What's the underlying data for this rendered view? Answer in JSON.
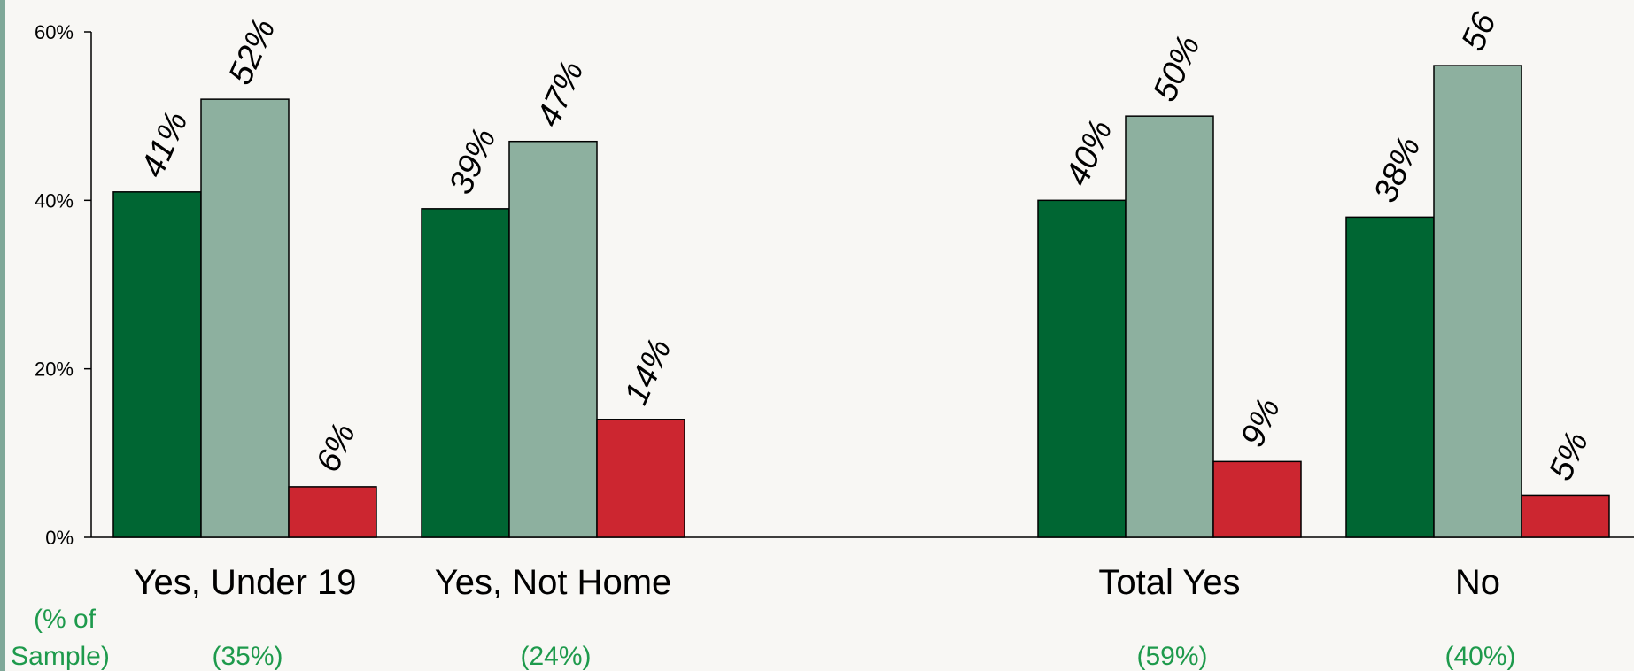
{
  "chart_data": {
    "type": "bar",
    "categories": [
      "Yes, Under 19",
      "Yes, Not Home",
      "Total Yes",
      "No"
    ],
    "series": [
      {
        "values": [
          41,
          39,
          40,
          38
        ],
        "color": "#006633"
      },
      {
        "values": [
          52,
          47,
          50,
          56
        ],
        "color": "#8db09f"
      },
      {
        "values": [
          6,
          14,
          9,
          5
        ],
        "color": "#cc2630"
      }
    ],
    "data_labels": [
      [
        "41%",
        "39%",
        "40%",
        "38%"
      ],
      [
        "52%",
        "47%",
        "50%",
        "56"
      ],
      [
        "6%",
        "14%",
        "9%",
        "5%"
      ]
    ],
    "sample_heading": [
      "(% of",
      "Sample)"
    ],
    "sample_shares": [
      "(35%)",
      "(24%)",
      "(59%)",
      "(40%)"
    ],
    "y_ticks": [
      0,
      20,
      40,
      60
    ],
    "y_tick_labels": [
      "0%",
      "20%",
      "40%",
      "60%"
    ],
    "ylim": [
      0,
      60
    ],
    "grid": false,
    "legend": "none"
  }
}
